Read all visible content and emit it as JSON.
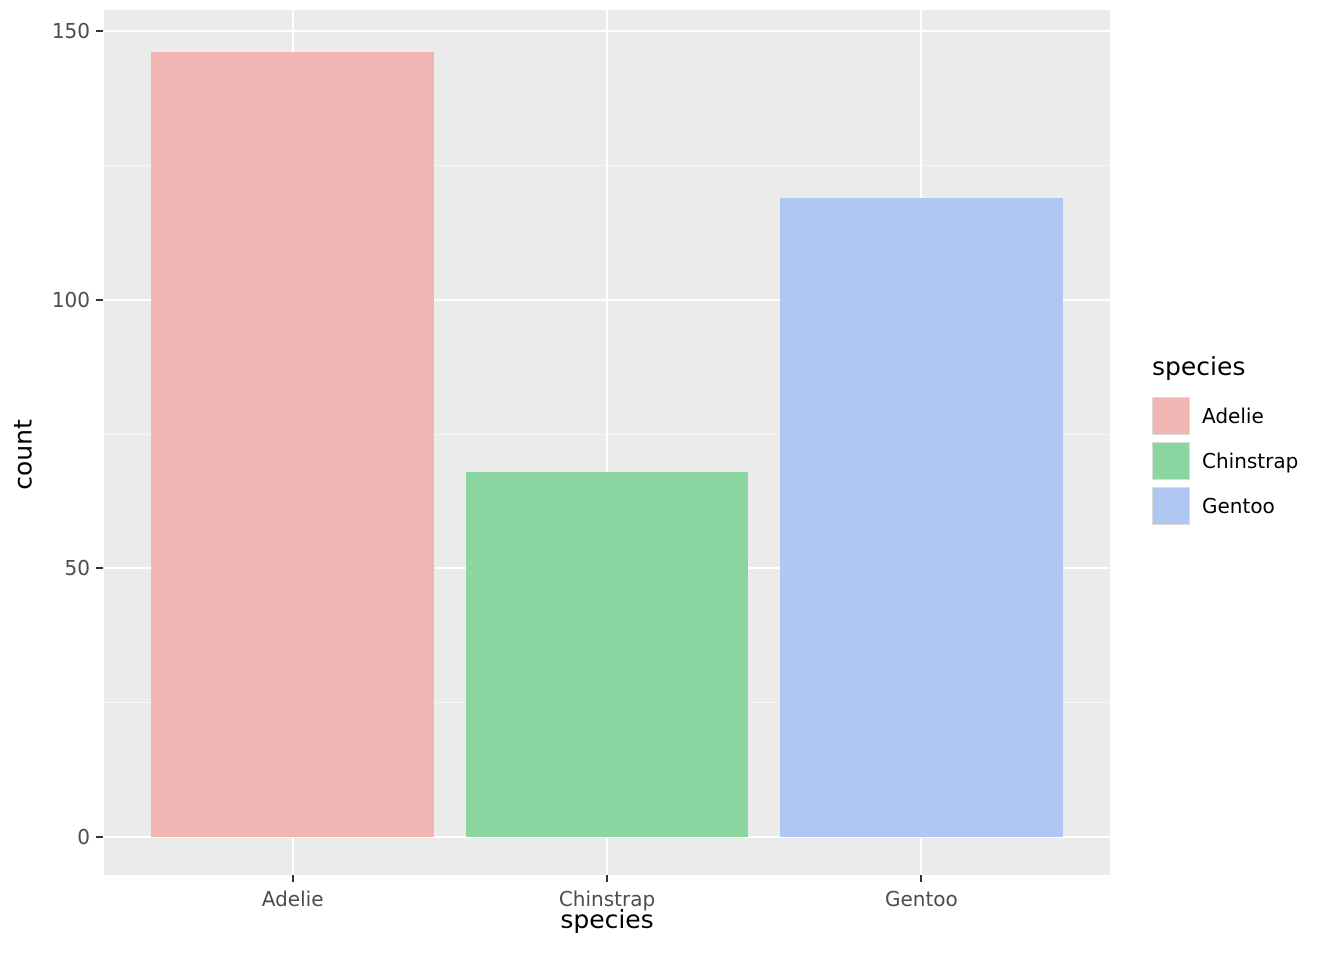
{
  "chart_data": {
    "type": "bar",
    "title": "",
    "xlabel": "species",
    "ylabel": "count",
    "categories": [
      "Adelie",
      "Chinstrap",
      "Gentoo"
    ],
    "values": [
      146,
      68,
      119
    ],
    "colors": [
      "#f1b6b3",
      "#8bd5a0",
      "#afc7f1"
    ],
    "ylim": [
      -7,
      154
    ],
    "yticks": [
      0,
      50,
      100,
      150
    ],
    "yticks_minor": [
      25,
      75,
      125
    ],
    "grid": "on",
    "panel_background": "#ebebeb",
    "grid_color": "#ffffff",
    "tick_label_color": "#4d4d4d",
    "legend": {
      "title": "species",
      "position": "right",
      "entries": [
        {
          "label": "Adelie",
          "color": "#f1b6b3"
        },
        {
          "label": "Chinstrap",
          "color": "#8bd5a0"
        },
        {
          "label": "Gentoo",
          "color": "#afc7f1"
        }
      ]
    }
  }
}
